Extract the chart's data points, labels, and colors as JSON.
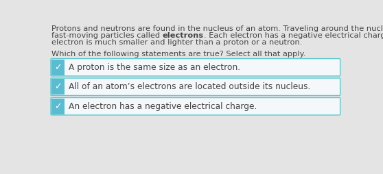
{
  "background_color": "#e4e4e4",
  "para_line1": "Protons and neutrons are found in the nucleus of an atom. Traveling around the nucleus are",
  "para_line2_before": "fast-moving particles called ",
  "para_line2_bold": "electrons",
  "para_line2_after": ". Each electron has a negative electrical charge. An",
  "para_line3": "electron is much smaller and lighter than a proton or a neutron.",
  "question_text": "Which of the following statements are true? Select all that apply.",
  "options": [
    "A proton is the same size as an electron.",
    "All of an atom’s electrons are located outside its nucleus.",
    "An electron has a negative electrical charge."
  ],
  "box_bg": "#f5f8fa",
  "box_border": "#5bc8d0",
  "accent_color": "#5bbbd0",
  "check_color": "#ffffff",
  "text_color": "#444444",
  "para_fontsize": 8.2,
  "question_fontsize": 8.2,
  "option_fontsize": 8.8
}
